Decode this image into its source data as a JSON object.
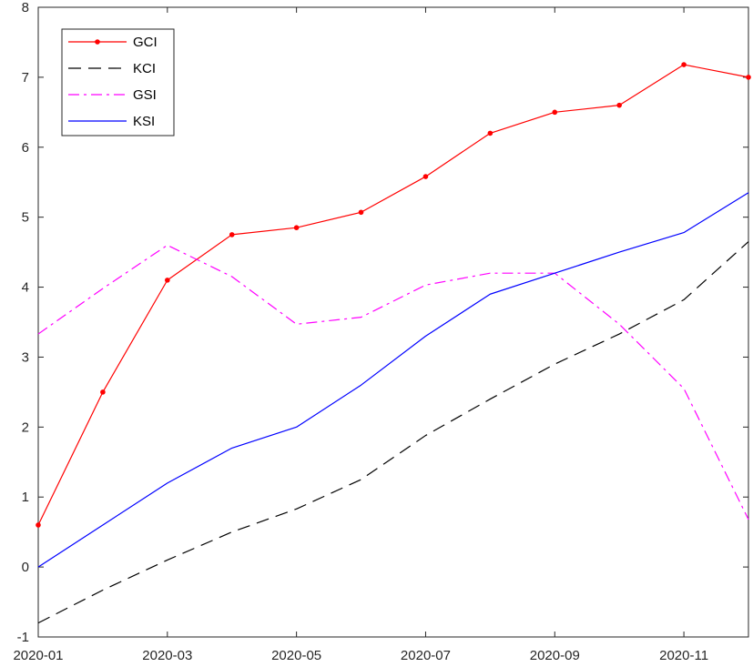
{
  "chart_data": {
    "type": "line",
    "title": "",
    "xlabel": "",
    "ylabel": "",
    "x": [
      "2020-01",
      "2020-02",
      "2020-03",
      "2020-04",
      "2020-05",
      "2020-06",
      "2020-07",
      "2020-08",
      "2020-09",
      "2020-10",
      "2020-11",
      "2020-12"
    ],
    "x_tick_labels": [
      "2020-01",
      "2020-03",
      "2020-05",
      "2020-07",
      "2020-09",
      "2020-11"
    ],
    "y_tick_labels": [
      "-1",
      "0",
      "1",
      "2",
      "3",
      "4",
      "5",
      "6",
      "7",
      "8"
    ],
    "ylim": [
      -1,
      8
    ],
    "grid": false,
    "legend_position": "top-left",
    "series": [
      {
        "name": "GCI",
        "color": "#ff0000",
        "line_style": "solid",
        "marker": "dot",
        "values": [
          0.6,
          2.5,
          4.1,
          4.75,
          4.85,
          5.07,
          5.58,
          6.2,
          6.5,
          6.6,
          7.18,
          7.0
        ]
      },
      {
        "name": "KCI",
        "color": "#000000",
        "line_style": "dashed",
        "marker": "none",
        "values": [
          -0.8,
          -0.33,
          0.1,
          0.5,
          0.83,
          1.25,
          1.88,
          2.4,
          2.9,
          3.33,
          3.82,
          4.65
        ]
      },
      {
        "name": "GSI",
        "color": "#ff00ff",
        "line_style": "dash-dot",
        "marker": "none",
        "values": [
          3.33,
          3.98,
          4.6,
          4.15,
          3.47,
          3.57,
          4.03,
          4.2,
          4.2,
          3.47,
          2.55,
          0.68
        ]
      },
      {
        "name": "KSI",
        "color": "#0000ff",
        "line_style": "solid",
        "marker": "none",
        "values": [
          0.0,
          0.6,
          1.2,
          1.7,
          2.0,
          2.6,
          3.3,
          3.9,
          4.2,
          4.5,
          4.78,
          5.35
        ]
      }
    ]
  }
}
